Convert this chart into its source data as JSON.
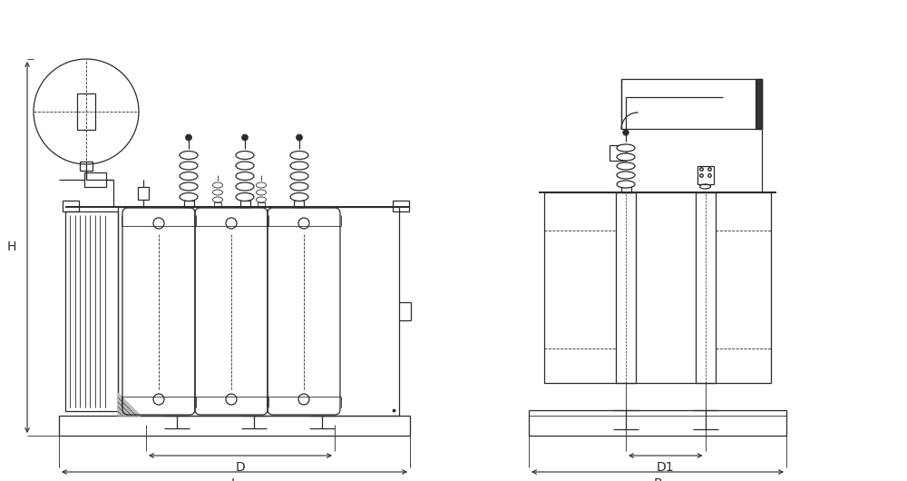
{
  "bg_color": "#ffffff",
  "line_color": "#2a2a2a",
  "dim_color": "#2a2a2a",
  "lw": 0.9,
  "lw_thick": 1.4,
  "lw_thin": 0.6,
  "fig_width": 10.0,
  "fig_height": 5.3,
  "labels": {
    "H": "H",
    "D": "D",
    "L": "L",
    "D1": "D1",
    "B": "B"
  }
}
